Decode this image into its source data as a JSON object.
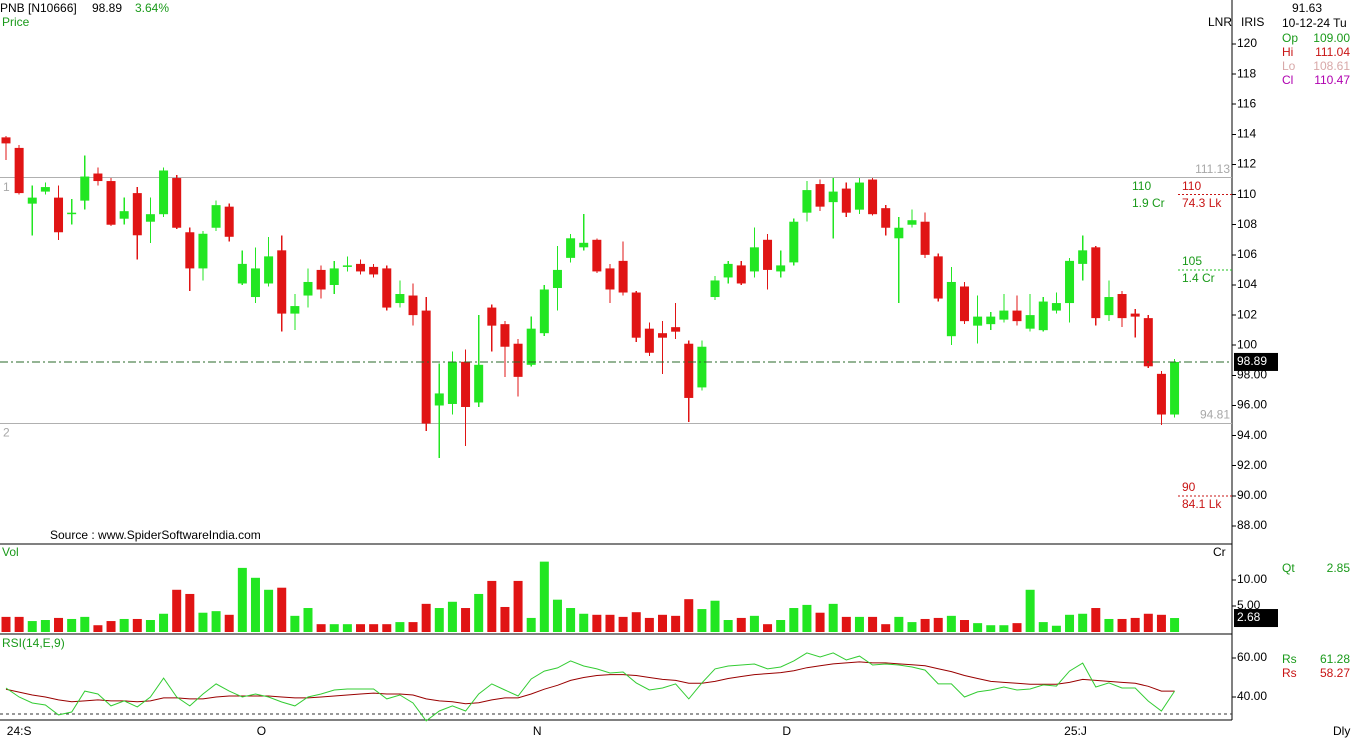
{
  "header": {
    "symbol": "PNB [N10666]",
    "change": "3.64%"
  },
  "scale_labels": [
    "LNR",
    "IRIS"
  ],
  "source": "Source : www.SpiderSoftwareIndia.com",
  "period": "Dly",
  "info": {
    "cursor_price": "91.63",
    "date": "10-12-24 Tu",
    "ohlc": [
      {
        "label": "Op",
        "value": "109.00"
      },
      {
        "label": "Hi",
        "value": "111.04"
      },
      {
        "label": "Lo",
        "value": "108.61"
      },
      {
        "label": "Cl",
        "value": "110.47"
      }
    ],
    "qty": {
      "label": "Qt",
      "value": "2.85"
    },
    "rsi": [
      {
        "label": "Rs",
        "value": "61.28"
      },
      {
        "label": "Rs",
        "value": "58.27"
      }
    ]
  },
  "chart_data": [
    {
      "type": "candlestick",
      "title": "Price",
      "up_color": "#22e622",
      "down_color": "#e01414",
      "categories": [
        null,
        "24:S",
        null,
        null,
        null,
        null,
        null,
        null,
        null,
        null,
        null,
        null,
        null,
        null,
        null,
        null,
        null,
        null,
        null,
        "O",
        null,
        null,
        null,
        null,
        null,
        null,
        null,
        null,
        null,
        null,
        null,
        null,
        null,
        null,
        null,
        null,
        null,
        null,
        null,
        null,
        "N",
        null,
        null,
        null,
        null,
        null,
        null,
        null,
        null,
        null,
        null,
        null,
        null,
        null,
        null,
        null,
        null,
        null,
        null,
        "D",
        null,
        null,
        null,
        null,
        null,
        null,
        null,
        null,
        null,
        null,
        null,
        null,
        null,
        null,
        null,
        null,
        null,
        null,
        null,
        null,
        null,
        "25:J",
        null,
        null,
        null,
        null,
        null,
        null,
        null,
        null
      ],
      "open": [
        113.8,
        113.1,
        109.4,
        110.2,
        109.8,
        108.7,
        109.6,
        111.4,
        110.9,
        108.4,
        110.1,
        108.2,
        108.7,
        111.1,
        107.5,
        105.1,
        107.8,
        109.2,
        104.1,
        103.2,
        104.1,
        106.3,
        102.1,
        103.3,
        105,
        104,
        105.2,
        105.4,
        105.2,
        105.1,
        102.8,
        103.3,
        102.3,
        96,
        96.1,
        98.9,
        96.2,
        102.5,
        101.4,
        100.1,
        98.7,
        100.8,
        103.8,
        105.8,
        106.5,
        107,
        105.1,
        105.6,
        103.5,
        101.1,
        100.8,
        101.2,
        100.1,
        97.2,
        103.2,
        104.5,
        105.3,
        104.9,
        107,
        104.9,
        105.5,
        108.8,
        110.7,
        109.5,
        110.4,
        109,
        111,
        109.1,
        107.1,
        108,
        108.2,
        105.9,
        100.6,
        103.9,
        101.3,
        101.4,
        101.7,
        102.3,
        101.1,
        101,
        102.3,
        102.8,
        105.4,
        106.5,
        102,
        103.4,
        102.1,
        101.8,
        98.1,
        95.4
      ],
      "high": [
        113.9,
        113.3,
        110.6,
        110.8,
        110.6,
        109.7,
        112.6,
        111.8,
        111.1,
        109.8,
        110.5,
        109.8,
        111.8,
        111.3,
        107.8,
        107.6,
        109.6,
        109.4,
        106.3,
        106.5,
        107.2,
        107.3,
        103.4,
        105.1,
        105.3,
        105.6,
        105.9,
        105.7,
        105.4,
        105.3,
        104.3,
        104.1,
        103.2,
        98.8,
        99.6,
        99.7,
        102,
        102.7,
        101.6,
        100.4,
        101.9,
        104,
        106.6,
        107.4,
        108.7,
        107.1,
        105.4,
        106.9,
        103.6,
        101.5,
        101.6,
        102.8,
        100.3,
        100.3,
        104.6,
        105.6,
        105.6,
        107.8,
        107.4,
        106.3,
        108.4,
        110.9,
        111,
        111.1,
        110.8,
        111.1,
        111.1,
        109.3,
        108.5,
        109,
        108.8,
        106.1,
        105.2,
        104.2,
        103.3,
        102.2,
        103.4,
        103.3,
        103.4,
        103.2,
        103.5,
        105.8,
        107.3,
        106.6,
        104.3,
        103.6,
        102.4,
        102,
        98.3,
        99.1
      ],
      "low": [
        112.3,
        110,
        107.3,
        110,
        107,
        108,
        109,
        110.6,
        107.9,
        108,
        105.7,
        106.8,
        108.5,
        107.7,
        103.6,
        104.3,
        107.6,
        106.9,
        104,
        102.8,
        103.9,
        100.9,
        101,
        102.5,
        103.1,
        103.4,
        104.9,
        104.7,
        104.5,
        102.3,
        102.5,
        101.3,
        94.3,
        92.5,
        95.4,
        93.3,
        95.9,
        99.6,
        97.9,
        96.6,
        98.6,
        100.6,
        102.3,
        105.5,
        106.3,
        104.8,
        102.8,
        103.3,
        100.2,
        99.3,
        98.1,
        100.4,
        94.9,
        97,
        103,
        104.1,
        104,
        104.5,
        103.7,
        104.5,
        105.3,
        108.2,
        108.9,
        107.1,
        108.5,
        108.7,
        108.6,
        107.3,
        102.8,
        107.8,
        105.8,
        102.9,
        100,
        101.4,
        100.1,
        101,
        101.5,
        101.3,
        100.9,
        100.9,
        102.1,
        101.5,
        104.3,
        101.3,
        101.6,
        101.2,
        100.5,
        98.5,
        94.7,
        95.2
      ],
      "close": [
        113.4,
        110.1,
        109.8,
        110.5,
        107.5,
        108.8,
        111.2,
        110.9,
        108,
        108.9,
        107.3,
        108.7,
        111.6,
        107.8,
        105.1,
        107.4,
        109.3,
        107.2,
        105.4,
        105.1,
        105.9,
        102.1,
        102.6,
        104.2,
        103.7,
        105.1,
        105.3,
        104.9,
        104.7,
        102.5,
        103.4,
        102,
        94.8,
        96.8,
        98.9,
        95.9,
        98.7,
        101.3,
        99.9,
        97.9,
        101.1,
        103.7,
        105,
        107.1,
        106.8,
        104.9,
        103.7,
        103.5,
        100.5,
        99.5,
        100.5,
        100.9,
        96.5,
        99.9,
        104.3,
        105.4,
        104.1,
        106.5,
        105,
        105.3,
        108.2,
        110.3,
        109.2,
        110.2,
        108.8,
        110.8,
        108.7,
        107.8,
        107.8,
        108.3,
        106,
        103.1,
        104.2,
        101.6,
        101.9,
        101.9,
        102.3,
        101.6,
        102,
        102.9,
        102.8,
        105.6,
        106.3,
        101.8,
        103.2,
        101.8,
        101.9,
        98.6,
        95.4,
        98.89
      ],
      "ylim": [
        86.87,
        122.92
      ],
      "yticks": [
        120,
        118,
        116,
        114,
        112,
        110,
        108,
        106,
        104,
        102,
        100,
        {
          "value": 98,
          "label": "98.00"
        },
        {
          "value": 96,
          "label": "96.00"
        },
        {
          "value": 94,
          "label": "94.00"
        },
        {
          "value": 92,
          "label": "92.00"
        },
        {
          "value": 90,
          "label": "90.00"
        },
        {
          "value": 88,
          "label": "88.00"
        }
      ],
      "hlines": [
        111.13,
        94.81
      ],
      "hline_labels": [
        "1",
        "2"
      ],
      "volume_levels": [
        {
          "price": 110,
          "buy": "1.9 Cr",
          "sell": "74.3 Lk"
        },
        {
          "price": 105,
          "buy": "1.4 Cr"
        },
        {
          "price": 90,
          "sell": "84.1 Lk"
        }
      ]
    },
    {
      "type": "bar",
      "title": "Vol",
      "unit": "Cr",
      "values": [
        2.9,
        2.9,
        2.1,
        2.3,
        2.7,
        2.5,
        2.9,
        1.3,
        2.1,
        2.5,
        2.5,
        2.3,
        3.5,
        8.1,
        7.3,
        3.7,
        4.0,
        3.3,
        12.3,
        10.4,
        8.1,
        8.5,
        3.1,
        4.6,
        1.5,
        1.5,
        1.5,
        1.5,
        1.5,
        1.5,
        1.9,
        1.9,
        5.4,
        4.6,
        5.8,
        4.6,
        7.3,
        9.8,
        4.8,
        9.8,
        2.7,
        13.5,
        6.2,
        4.6,
        3.5,
        3.3,
        3.3,
        2.9,
        3.8,
        2.7,
        3.3,
        3.1,
        6.3,
        4.4,
        6.0,
        2.3,
        2.7,
        3.1,
        1.5,
        2.3,
        4.6,
        5.2,
        3.7,
        5.4,
        2.9,
        2.9,
        2.9,
        1.5,
        2.9,
        1.9,
        2.5,
        2.7,
        3.1,
        2.3,
        1.7,
        1.3,
        1.3,
        1.7,
        8.1,
        1.9,
        1.2,
        3.3,
        3.5,
        4.6,
        2.5,
        2.5,
        2.7,
        3.5,
        3.3,
        2.68
      ],
      "ylim": [
        0,
        16.5
      ],
      "yticks": [
        {
          "value": 10,
          "label": "10.00"
        },
        {
          "value": 5,
          "label": "5.00"
        }
      ]
    },
    {
      "type": "line",
      "title": "RSI(14,E,9)",
      "series": [
        {
          "color": "#33cc33",
          "values": [
            44.6,
            40,
            36.9,
            35.9,
            30.8,
            32.3,
            43,
            41.5,
            35.4,
            38,
            34.9,
            40,
            49.7,
            40,
            35.4,
            41.5,
            46.7,
            43,
            40,
            41.5,
            40,
            37.4,
            35.4,
            40,
            41.5,
            43.6,
            44.1,
            44.1,
            44.1,
            39,
            41,
            36.9,
            27.7,
            32.8,
            35.4,
            32.8,
            41.5,
            46.7,
            43.6,
            40.5,
            49.2,
            53.3,
            54.9,
            58.5,
            55.9,
            54.4,
            52.3,
            52.8,
            47.2,
            43.6,
            44.6,
            46.7,
            39,
            47.2,
            54.4,
            55.9,
            56.4,
            56.9,
            54.4,
            55.4,
            58.5,
            62.6,
            60.5,
            62.6,
            59,
            61,
            56.4,
            56.9,
            56.4,
            55.4,
            53.8,
            46.7,
            46.7,
            40,
            42.6,
            43.6,
            45.1,
            43.6,
            44.1,
            46.2,
            45.6,
            53.3,
            57.4,
            45.1,
            47.2,
            44.6,
            44.6,
            37.9,
            32.8,
            43
          ]
        },
        {
          "color": "#990000",
          "values": [
            44,
            42.5,
            41,
            40,
            38.5,
            37.5,
            38,
            38.5,
            38,
            38,
            37.5,
            38,
            39.5,
            39.5,
            39,
            39,
            40,
            40.5,
            40.5,
            40.5,
            40.5,
            40,
            39.5,
            39.5,
            40,
            40.5,
            41,
            41.5,
            42,
            41.5,
            41.5,
            41,
            39,
            38,
            37.5,
            36.5,
            37,
            38.5,
            39.5,
            39.5,
            41.5,
            44,
            46,
            48.5,
            50,
            51,
            51.5,
            51.5,
            51,
            50,
            49,
            48.5,
            47,
            47,
            48,
            49.5,
            50.5,
            51.5,
            52,
            52.5,
            53.5,
            55,
            56,
            57,
            57.5,
            58,
            57.5,
            57.5,
            57,
            56.5,
            56,
            54.5,
            53,
            51,
            49.5,
            48,
            47.5,
            47,
            46.5,
            46.5,
            46.5,
            47.5,
            49,
            48.5,
            48,
            47.5,
            47,
            45.5,
            43,
            43
          ]
        }
      ],
      "ylim": [
        29.2,
        71.3
      ],
      "yticks": [
        {
          "value": 60,
          "label": "60.00"
        },
        {
          "value": 40,
          "label": "40.00"
        }
      ]
    }
  ]
}
